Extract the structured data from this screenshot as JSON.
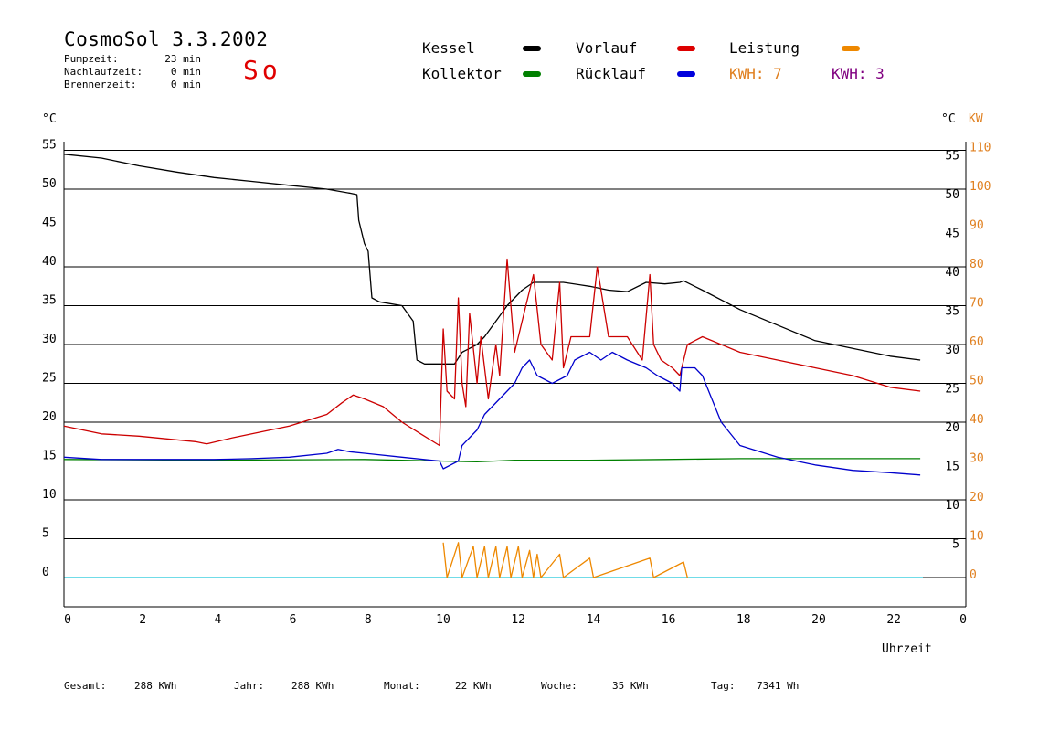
{
  "header": {
    "title": "CosmoSol 3.3.2002",
    "day": "So",
    "stats": [
      {
        "label": "Pumpzeit:",
        "value": "23 min"
      },
      {
        "label": "Nachlaufzeit:",
        "value": "0 min"
      },
      {
        "label": "Brennerzeit:",
        "value": "0 min"
      }
    ]
  },
  "legend": {
    "kessel": "Kessel",
    "kollektor": "Kollektor",
    "vorlauf": "Vorlauf",
    "ruecklauf": "Rücklauf",
    "leistung": "Leistung",
    "kwh1": "KWH: 7",
    "kwh2": "KWH: 3"
  },
  "colors": {
    "kessel": "#000000",
    "kollektor": "#008000",
    "vorlauf": "#cc0000",
    "ruecklauf": "#0000cc",
    "leistung": "#ee8800",
    "kwh1": "#e08020",
    "kwh2": "#800080",
    "zero_line": "#40d0e0"
  },
  "footer": [
    {
      "label": "Gesamt:",
      "value": "288 KWh"
    },
    {
      "label": "Jahr:",
      "value": "288 KWh"
    },
    {
      "label": "Monat:",
      "value": "22 KWh"
    },
    {
      "label": "Woche:",
      "value": "35 KWh"
    },
    {
      "label": "Tag:",
      "value": "7341 Wh"
    }
  ],
  "chart_data": {
    "type": "line",
    "title": "CosmoSol 3.3.2002",
    "xlabel": "Uhrzeit",
    "ylabel_left": "°C",
    "ylabel_right": "°C",
    "ylabel_right2": "KW",
    "xlim": [
      0,
      24
    ],
    "ylim": [
      -3.5,
      56
    ],
    "xticks": [
      "0",
      "2",
      "4",
      "6",
      "8",
      "10",
      "12",
      "14",
      "16",
      "18",
      "20",
      "22",
      "0"
    ],
    "yticks_left": [
      0,
      5,
      10,
      15,
      20,
      25,
      30,
      35,
      40,
      45,
      50,
      55
    ],
    "yticks_right_c": [
      5,
      10,
      15,
      20,
      25,
      30,
      35,
      40,
      45,
      50,
      55
    ],
    "yticks_right_kw": [
      0,
      10,
      20,
      30,
      40,
      50,
      60,
      70,
      80,
      90,
      100,
      110
    ],
    "grid": true,
    "series": [
      {
        "name": "Kessel",
        "color": "#000000",
        "x": [
          0,
          1,
          2,
          3,
          4,
          5,
          6,
          7,
          7.6,
          7.8,
          7.85,
          8.0,
          8.1,
          8.2,
          8.4,
          9.0,
          9.3,
          9.4,
          9.6,
          10.0,
          10.4,
          10.6,
          11.0,
          11.2,
          11.5,
          11.8,
          12.2,
          12.5,
          12.8,
          13.3,
          14.0,
          14.5,
          15.0,
          15.5,
          16.0,
          16.4,
          16.5,
          17.0,
          18.0,
          19.0,
          20.0,
          21.0,
          22.0,
          22.8
        ],
        "y": [
          54.5,
          54,
          53,
          52.2,
          51.5,
          51,
          50.5,
          50,
          49.5,
          49.3,
          46,
          43,
          42,
          36,
          35.5,
          35,
          33,
          28,
          27.5,
          27.5,
          27.5,
          29,
          30,
          31,
          33,
          35,
          37,
          38,
          38,
          38,
          37.5,
          37,
          36.8,
          38,
          37.8,
          38,
          38.2,
          37,
          34.5,
          32.5,
          30.5,
          29.5,
          28.5,
          28
        ],
        "type": "line"
      },
      {
        "name": "Kollektor",
        "color": "#008000",
        "x": [
          0,
          4,
          8,
          10,
          11,
          12,
          14,
          16,
          18,
          20,
          22.8
        ],
        "y": [
          15.2,
          15.1,
          15.2,
          15.0,
          14.9,
          15.1,
          15.1,
          15.2,
          15.3,
          15.3,
          15.3
        ],
        "type": "line"
      },
      {
        "name": "Vorlauf",
        "color": "#cc0000",
        "x": [
          0,
          1,
          2,
          3.5,
          3.8,
          4.5,
          6,
          7,
          7.4,
          7.7,
          8.0,
          8.5,
          9.0,
          9.5,
          10.0,
          10.05,
          10.1,
          10.2,
          10.4,
          10.5,
          10.6,
          10.7,
          10.8,
          11.0,
          11.1,
          11.3,
          11.5,
          11.6,
          11.8,
          12.0,
          12.2,
          12.5,
          12.7,
          13.0,
          13.2,
          13.3,
          13.5,
          13.7,
          14.0,
          14.2,
          14.5,
          15.0,
          15.4,
          15.6,
          15.7,
          15.9,
          16.2,
          16.4,
          16.6,
          17.0,
          18.0,
          19.0,
          20.0,
          21.0,
          22.0,
          22.8
        ],
        "y": [
          19.5,
          18.5,
          18.2,
          17.5,
          17.2,
          18,
          19.5,
          21,
          22.5,
          23.5,
          23,
          22,
          20,
          18.5,
          17,
          25,
          32,
          24,
          23,
          36,
          25,
          22,
          34,
          25,
          31,
          23,
          30,
          26,
          41,
          29,
          33,
          39,
          30,
          28,
          38,
          27,
          31,
          31,
          31,
          40,
          31,
          31,
          28,
          39,
          30,
          28,
          27,
          26,
          30,
          31,
          29,
          28,
          27,
          26,
          24.5,
          24
        ],
        "type": "line"
      },
      {
        "name": "Rücklauf",
        "color": "#0000cc",
        "x": [
          0,
          1,
          2,
          3,
          4,
          5,
          6,
          7,
          7.3,
          7.6,
          8,
          9,
          10,
          10.1,
          10.5,
          10.6,
          11,
          11.2,
          11.6,
          12,
          12.2,
          12.4,
          12.6,
          13,
          13.4,
          13.6,
          14,
          14.3,
          14.6,
          15,
          15.5,
          15.8,
          16.2,
          16.4,
          16.45,
          16.8,
          17.0,
          17.5,
          18,
          19,
          20,
          21,
          22,
          22.8
        ],
        "y": [
          15.5,
          15.2,
          15.2,
          15.2,
          15.2,
          15.3,
          15.5,
          16,
          16.5,
          16.2,
          16,
          15.5,
          15,
          14,
          15,
          17,
          19,
          21,
          23,
          25,
          27,
          28,
          26,
          25,
          26,
          28,
          29,
          28,
          29,
          28,
          27,
          26,
          25,
          24,
          27,
          27,
          26,
          20,
          17,
          15.5,
          14.5,
          13.8,
          13.5,
          13.2
        ],
        "type": "line"
      },
      {
        "name": "Leistung",
        "color": "#ee8800",
        "x": [
          10.1,
          10.2,
          10.5,
          10.6,
          10.9,
          11.0,
          11.2,
          11.3,
          11.5,
          11.6,
          11.8,
          11.9,
          12.1,
          12.2,
          12.4,
          12.5,
          12.6,
          12.7,
          13.2,
          13.3,
          14.0,
          14.1,
          15.6,
          15.7,
          16.5,
          16.6
        ],
        "y": [
          9,
          0,
          9,
          0,
          8,
          0,
          8,
          0,
          8,
          0,
          8,
          0,
          8,
          0,
          7,
          0,
          6,
          0,
          6,
          0,
          5,
          0,
          5,
          0,
          4,
          0
        ],
        "axis": "right_kw",
        "type": "line"
      }
    ]
  }
}
